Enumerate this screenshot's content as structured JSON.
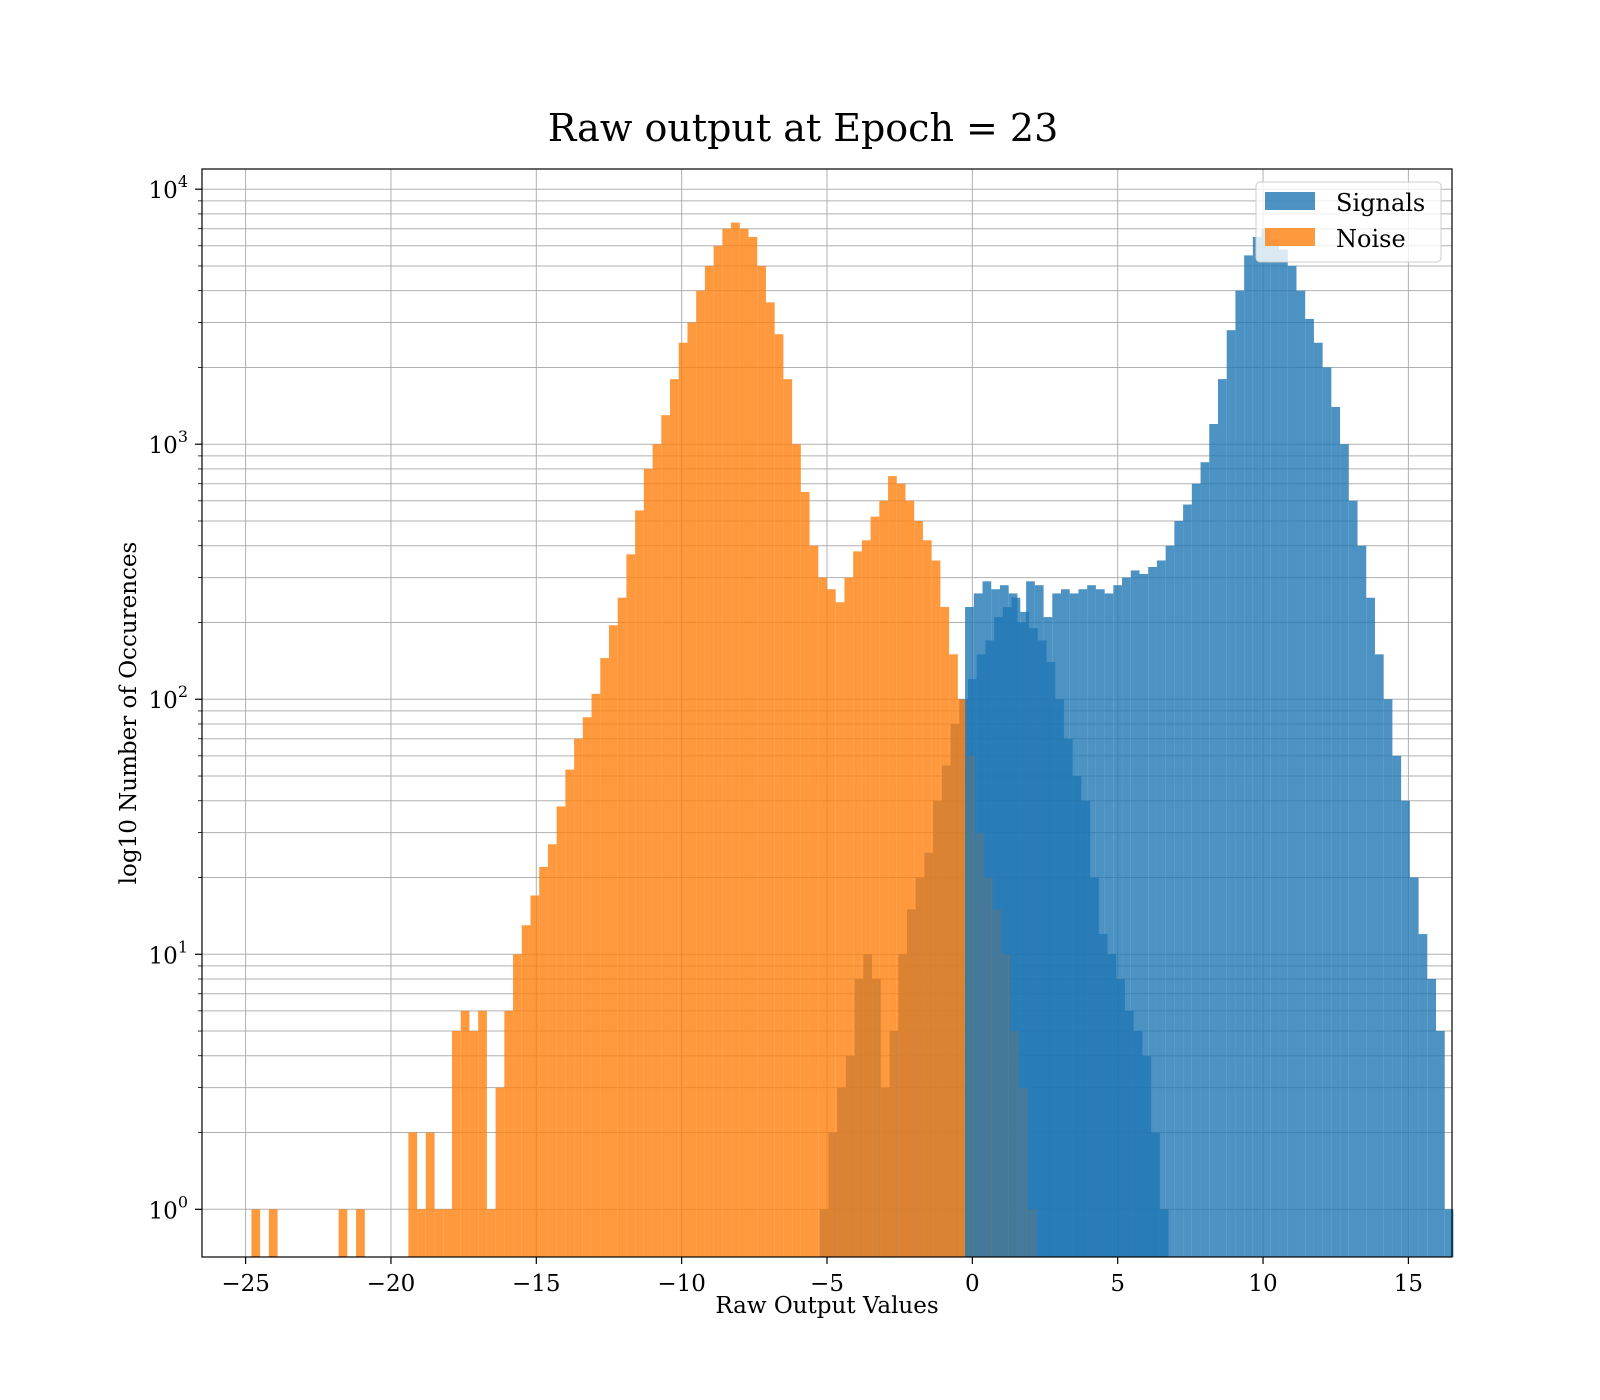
{
  "chart_data": {
    "type": "bar",
    "title": "Raw output at Epoch = 23",
    "xlabel": "Raw Output Values",
    "ylabel": "log10 Number of Occurences",
    "xlim": [
      -26.5,
      16.5
    ],
    "ylim": [
      0.65,
      12000
    ],
    "yscale": "log",
    "grid": true,
    "legend_position": "top-right",
    "x_ticks": [
      -25,
      -20,
      -15,
      -10,
      -5,
      0,
      5,
      10,
      15
    ],
    "x_tick_labels": [
      "−25",
      "−20",
      "−15",
      "−10",
      "−5",
      "0",
      "5",
      "10",
      "15"
    ],
    "y_ticks": [
      {
        "value": 1,
        "base": "10",
        "exp": "0"
      },
      {
        "value": 10,
        "base": "10",
        "exp": "1"
      },
      {
        "value": 100,
        "base": "10",
        "exp": "2"
      },
      {
        "value": 1000,
        "base": "10",
        "exp": "3"
      },
      {
        "value": 10000,
        "base": "10",
        "exp": "4"
      }
    ],
    "series": [
      {
        "name": "Signals",
        "color": "#1f77b4",
        "opacity": 0.8,
        "bin_start": -5.25,
        "bin_width": 0.3,
        "counts": [
          1,
          2,
          3,
          4,
          8,
          10,
          8,
          3,
          5,
          10,
          15,
          20,
          25,
          40,
          55,
          80,
          100,
          120,
          150,
          170,
          210,
          230,
          250,
          220,
          190,
          170,
          140,
          100,
          70,
          50,
          40,
          20,
          12,
          10,
          8,
          6,
          5,
          4,
          2,
          1
        ]
      },
      {
        "name": "Noise",
        "color": "#ff7f0e",
        "opacity": 0.8,
        "bin_start": -24.8,
        "bin_width": 0.3,
        "counts": [
          1,
          0,
          1,
          0,
          0,
          0,
          0,
          0,
          0,
          0,
          1,
          0,
          1,
          0,
          0,
          0,
          0,
          0,
          2,
          1,
          2,
          1,
          1,
          5,
          6,
          5,
          6,
          1,
          3,
          6,
          10,
          13,
          17,
          22,
          27,
          38,
          53,
          70,
          85,
          105,
          145,
          195,
          250,
          370,
          550,
          800,
          1000,
          1300,
          1800,
          2500,
          3000,
          4000,
          5000,
          6000,
          7000,
          7400,
          7000,
          6500,
          5000,
          3600,
          2700,
          1800,
          1000,
          650,
          400,
          300,
          270,
          240,
          300,
          380,
          420,
          520,
          600,
          750,
          700,
          600,
          500,
          420,
          350,
          230,
          150,
          100,
          60,
          30,
          20,
          15,
          10,
          5,
          3,
          1
        ]
      },
      {
        "name": "",
        "color": "#1f77b4",
        "opacity": 0.8,
        "bin_start": -0.25,
        "bin_width": 0.3,
        "counts": [
          230,
          260,
          290,
          270,
          280,
          260,
          200,
          290,
          280,
          210,
          260,
          270,
          260,
          270,
          280,
          270,
          260,
          280,
          300,
          320,
          310,
          330,
          350,
          400,
          500,
          580,
          700,
          850,
          1200,
          1800,
          2800,
          4000,
          5500,
          6500,
          7000,
          6400,
          5800,
          5000,
          4000,
          3100,
          2500,
          2000,
          1400,
          1000,
          600,
          400,
          250,
          150,
          100,
          60,
          40,
          20,
          12,
          8,
          5,
          1
        ]
      }
    ]
  }
}
